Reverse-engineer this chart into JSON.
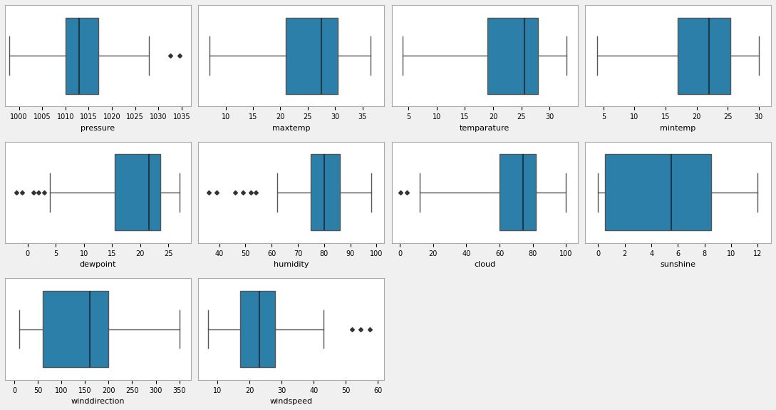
{
  "plots": [
    {
      "label": "pressure",
      "whislo": 998.0,
      "q1": 1010.0,
      "med": 1013.0,
      "q3": 1017.0,
      "whishi": 1028.0,
      "fliers": [
        1032.5,
        1034.5
      ],
      "xlim": [
        997,
        1037
      ],
      "xticks": [
        1000,
        1005,
        1010,
        1015,
        1020,
        1025,
        1030,
        1035
      ]
    },
    {
      "label": "maxtemp",
      "whislo": 7.0,
      "q1": 21.0,
      "med": 27.5,
      "q3": 30.5,
      "whishi": 36.5,
      "fliers": [],
      "xlim": [
        5,
        39
      ],
      "xticks": [
        10,
        15,
        20,
        25,
        30,
        35
      ]
    },
    {
      "label": "temparature",
      "whislo": 4.0,
      "q1": 19.0,
      "med": 25.5,
      "q3": 28.0,
      "whishi": 33.0,
      "fliers": [],
      "xlim": [
        2,
        35
      ],
      "xticks": [
        5,
        10,
        15,
        20,
        25,
        30
      ]
    },
    {
      "label": "mintemp",
      "whislo": 4.0,
      "q1": 17.0,
      "med": 22.0,
      "q3": 25.5,
      "whishi": 30.0,
      "fliers": [],
      "xlim": [
        2,
        32
      ],
      "xticks": [
        5,
        10,
        15,
        20,
        25,
        30
      ]
    },
    {
      "label": "dewpoint",
      "whislo": 4.0,
      "q1": 15.5,
      "med": 21.5,
      "q3": 23.5,
      "whishi": 27.0,
      "fliers": [
        -2.0,
        -1.0,
        1.0,
        2.0,
        3.0
      ],
      "xlim": [
        -4,
        29
      ],
      "xticks": [
        0,
        5,
        10,
        15,
        20,
        25
      ]
    },
    {
      "label": "humidity",
      "whislo": 62.0,
      "q1": 75.0,
      "med": 80.0,
      "q3": 86.0,
      "whishi": 98.0,
      "fliers": [
        36.0,
        39.0,
        46.0,
        49.0,
        52.0,
        54.0
      ],
      "xlim": [
        32,
        103
      ],
      "xticks": [
        40,
        50,
        60,
        70,
        80,
        90,
        100
      ]
    },
    {
      "label": "cloud",
      "whislo": 12.0,
      "q1": 60.0,
      "med": 74.0,
      "q3": 82.0,
      "whishi": 100.0,
      "fliers": [
        0.5,
        4.0
      ],
      "xlim": [
        -5,
        107
      ],
      "xticks": [
        0,
        20,
        40,
        60,
        80,
        100
      ]
    },
    {
      "label": "sunshine",
      "whislo": 0.0,
      "q1": 0.5,
      "med": 5.5,
      "q3": 8.5,
      "whishi": 12.0,
      "fliers": [],
      "xlim": [
        -1,
        13
      ],
      "xticks": [
        0,
        2,
        4,
        6,
        8,
        10,
        12
      ]
    },
    {
      "label": "winddirection",
      "whislo": 10.0,
      "q1": 60.0,
      "med": 160.0,
      "q3": 200.0,
      "whishi": 350.0,
      "fliers": [],
      "xlim": [
        -20,
        375
      ],
      "xticks": [
        0,
        50,
        100,
        150,
        200,
        250,
        300,
        350
      ]
    },
    {
      "label": "windspeed",
      "whislo": 7.0,
      "q1": 17.0,
      "med": 23.0,
      "q3": 28.0,
      "whishi": 43.0,
      "fliers": [
        52.0,
        54.5,
        57.5
      ],
      "xlim": [
        4,
        62
      ],
      "xticks": [
        10,
        20,
        30,
        40,
        50,
        60
      ]
    }
  ],
  "box_color": "#2b7fa8",
  "median_color": "#1e3a4a",
  "whisker_color": "#555555",
  "flier_color": "#333333",
  "background_color": "#ffffff",
  "fig_facecolor": "#f0f0f0"
}
